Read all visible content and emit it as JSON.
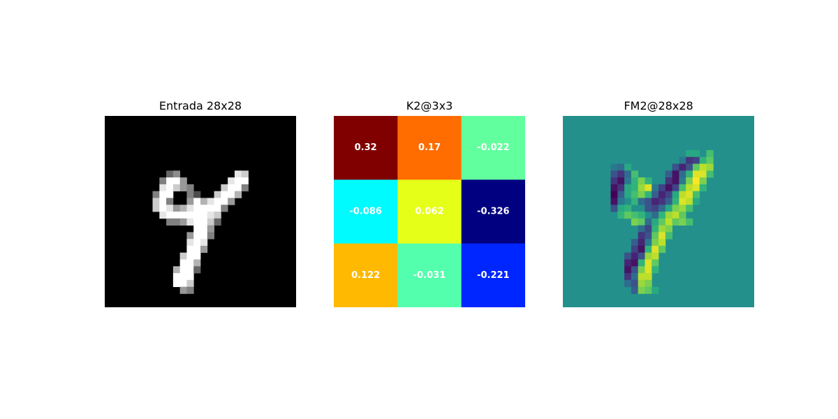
{
  "chart_data": [
    {
      "type": "heatmap",
      "title": "Entrada 28x28",
      "colormap": "gray",
      "value_range": [
        0,
        1
      ],
      "rows": 28,
      "cols": 28,
      "sparse_cells": [
        [
          8,
          9,
          0.4
        ],
        [
          8,
          10,
          0.55
        ],
        [
          8,
          19,
          0.9
        ],
        [
          8,
          20,
          0.8
        ],
        [
          9,
          8,
          0.5
        ],
        [
          9,
          9,
          1
        ],
        [
          9,
          10,
          1
        ],
        [
          9,
          11,
          0.6
        ],
        [
          9,
          18,
          0.9
        ],
        [
          9,
          19,
          1
        ],
        [
          9,
          20,
          1
        ],
        [
          10,
          8,
          0.9
        ],
        [
          10,
          9,
          1
        ],
        [
          10,
          10,
          0.8
        ],
        [
          10,
          11,
          0.6
        ],
        [
          10,
          12,
          0.5
        ],
        [
          10,
          17,
          0.8
        ],
        [
          10,
          18,
          1
        ],
        [
          10,
          19,
          1
        ],
        [
          10,
          20,
          0.5
        ],
        [
          11,
          7,
          0.5
        ],
        [
          11,
          8,
          1
        ],
        [
          11,
          9,
          1
        ],
        [
          11,
          12,
          0.5
        ],
        [
          11,
          13,
          0.3
        ],
        [
          11,
          16,
          0.8
        ],
        [
          11,
          17,
          1
        ],
        [
          11,
          18,
          1
        ],
        [
          11,
          19,
          0.7
        ],
        [
          12,
          7,
          0.8
        ],
        [
          12,
          8,
          1
        ],
        [
          12,
          9,
          0.5
        ],
        [
          12,
          12,
          0.6
        ],
        [
          12,
          13,
          1
        ],
        [
          12,
          14,
          0.7
        ],
        [
          12,
          15,
          0.9
        ],
        [
          12,
          16,
          1
        ],
        [
          12,
          17,
          1
        ],
        [
          12,
          18,
          0.6
        ],
        [
          13,
          7,
          0.8
        ],
        [
          13,
          8,
          1
        ],
        [
          13,
          9,
          0.9
        ],
        [
          13,
          10,
          0.6
        ],
        [
          13,
          11,
          0.7
        ],
        [
          13,
          12,
          0.9
        ],
        [
          13,
          13,
          1
        ],
        [
          13,
          14,
          1
        ],
        [
          13,
          15,
          1
        ],
        [
          13,
          16,
          1
        ],
        [
          13,
          17,
          0.5
        ],
        [
          14,
          8,
          0.9
        ],
        [
          14,
          9,
          1
        ],
        [
          14,
          10,
          1
        ],
        [
          14,
          11,
          1
        ],
        [
          14,
          12,
          1
        ],
        [
          14,
          13,
          1
        ],
        [
          14,
          14,
          1
        ],
        [
          14,
          15,
          0.9
        ],
        [
          14,
          16,
          0.8
        ],
        [
          15,
          9,
          0.5
        ],
        [
          15,
          10,
          0.5
        ],
        [
          15,
          11,
          0.6
        ],
        [
          15,
          12,
          0.9
        ],
        [
          15,
          13,
          1
        ],
        [
          15,
          14,
          1
        ],
        [
          15,
          15,
          0.8
        ],
        [
          15,
          16,
          0.4
        ],
        [
          16,
          13,
          1
        ],
        [
          16,
          14,
          1
        ],
        [
          16,
          15,
          0.6
        ],
        [
          17,
          12,
          0.6
        ],
        [
          17,
          13,
          1
        ],
        [
          17,
          14,
          1
        ],
        [
          17,
          15,
          0.5
        ],
        [
          18,
          12,
          0.9
        ],
        [
          18,
          13,
          1
        ],
        [
          18,
          14,
          0.9
        ],
        [
          19,
          12,
          1
        ],
        [
          19,
          13,
          1
        ],
        [
          19,
          14,
          0.6
        ],
        [
          20,
          11,
          0.8
        ],
        [
          20,
          12,
          1
        ],
        [
          20,
          13,
          1
        ],
        [
          21,
          11,
          1
        ],
        [
          21,
          12,
          1
        ],
        [
          21,
          13,
          0.7
        ],
        [
          22,
          10,
          0.7
        ],
        [
          22,
          11,
          1
        ],
        [
          22,
          12,
          1
        ],
        [
          22,
          13,
          0.4
        ],
        [
          23,
          10,
          1
        ],
        [
          23,
          11,
          1
        ],
        [
          23,
          12,
          1
        ],
        [
          24,
          10,
          1
        ],
        [
          24,
          11,
          1
        ],
        [
          24,
          12,
          0.8
        ],
        [
          25,
          11,
          0.6
        ],
        [
          25,
          12,
          0.5
        ]
      ]
    },
    {
      "type": "heatmap",
      "title": "K2@3x3",
      "colormap": "jet",
      "rows": 3,
      "cols": 3,
      "value_range": [
        -0.326,
        0.32
      ],
      "values": [
        [
          0.32,
          0.17,
          -0.022
        ],
        [
          -0.086,
          0.062,
          -0.326
        ],
        [
          0.122,
          -0.031,
          -0.221
        ]
      ],
      "labels": [
        [
          "0.32",
          "0.17",
          "-0.022"
        ],
        [
          "-0.086",
          "0.062",
          "-0.326"
        ],
        [
          "0.122",
          "-0.031",
          "-0.221"
        ]
      ]
    },
    {
      "type": "heatmap",
      "title": "FM2@28x28",
      "colormap": "viridis",
      "value_range": [
        -1,
        1
      ],
      "background_value": 0,
      "rows": 28,
      "cols": 28,
      "sparse_cells": [
        [
          5,
          18,
          0.2
        ],
        [
          5,
          19,
          0.2
        ],
        [
          5,
          21,
          0.4
        ],
        [
          6,
          17,
          -0.2
        ],
        [
          6,
          18,
          -0.7
        ],
        [
          6,
          19,
          -0.6
        ],
        [
          6,
          20,
          0.3
        ],
        [
          6,
          21,
          0.5
        ],
        [
          7,
          7,
          -0.2
        ],
        [
          7,
          8,
          -0.3
        ],
        [
          7,
          9,
          0.2
        ],
        [
          7,
          16,
          -0.5
        ],
        [
          7,
          17,
          -0.8
        ],
        [
          7,
          18,
          -0.5
        ],
        [
          7,
          19,
          0.5
        ],
        [
          7,
          20,
          0.8
        ],
        [
          7,
          21,
          0.7
        ],
        [
          8,
          7,
          -0.5
        ],
        [
          8,
          8,
          -0.7
        ],
        [
          8,
          9,
          -0.3
        ],
        [
          8,
          10,
          0.4
        ],
        [
          8,
          15,
          -0.4
        ],
        [
          8,
          16,
          -0.9
        ],
        [
          8,
          17,
          -0.3
        ],
        [
          8,
          18,
          0.3
        ],
        [
          8,
          19,
          0.9
        ],
        [
          8,
          20,
          0.9
        ],
        [
          8,
          21,
          0.4
        ],
        [
          9,
          7,
          -0.7
        ],
        [
          9,
          8,
          -0.9
        ],
        [
          9,
          9,
          -0.2
        ],
        [
          9,
          10,
          0.3
        ],
        [
          9,
          11,
          0.6
        ],
        [
          9,
          12,
          0.3
        ],
        [
          9,
          15,
          -0.7
        ],
        [
          9,
          16,
          -0.9
        ],
        [
          9,
          17,
          -0.2
        ],
        [
          9,
          18,
          0.6
        ],
        [
          9,
          19,
          1
        ],
        [
          9,
          20,
          0.6
        ],
        [
          10,
          7,
          -0.9
        ],
        [
          10,
          8,
          -0.7
        ],
        [
          10,
          9,
          0.2
        ],
        [
          10,
          10,
          0.3
        ],
        [
          10,
          11,
          0.7
        ],
        [
          10,
          12,
          0.9
        ],
        [
          10,
          13,
          -0.2
        ],
        [
          10,
          14,
          -0.6
        ],
        [
          10,
          15,
          -0.9
        ],
        [
          10,
          16,
          -0.6
        ],
        [
          10,
          17,
          0.4
        ],
        [
          10,
          18,
          0.8
        ],
        [
          10,
          19,
          0.9
        ],
        [
          10,
          20,
          0.3
        ],
        [
          11,
          7,
          -1
        ],
        [
          11,
          8,
          -0.4
        ],
        [
          11,
          9,
          0.2
        ],
        [
          11,
          10,
          0.4
        ],
        [
          11,
          11,
          0.6
        ],
        [
          11,
          12,
          0.3
        ],
        [
          11,
          13,
          -0.4
        ],
        [
          11,
          14,
          -0.8
        ],
        [
          11,
          15,
          -0.6
        ],
        [
          11,
          16,
          0.2
        ],
        [
          11,
          17,
          0.8
        ],
        [
          11,
          18,
          0.9
        ],
        [
          11,
          19,
          0.4
        ],
        [
          12,
          7,
          -0.9
        ],
        [
          12,
          8,
          -0.2
        ],
        [
          12,
          10,
          0.3
        ],
        [
          12,
          11,
          -0.3
        ],
        [
          12,
          12,
          -0.5
        ],
        [
          12,
          13,
          -0.8
        ],
        [
          12,
          14,
          -0.7
        ],
        [
          12,
          15,
          -0.4
        ],
        [
          12,
          16,
          0.3
        ],
        [
          12,
          17,
          0.9
        ],
        [
          12,
          18,
          0.8
        ],
        [
          12,
          19,
          0.2
        ],
        [
          13,
          7,
          -0.5
        ],
        [
          13,
          8,
          0.2
        ],
        [
          13,
          9,
          0.3
        ],
        [
          13,
          12,
          -0.5
        ],
        [
          13,
          13,
          -0.6
        ],
        [
          13,
          14,
          -0.3
        ],
        [
          13,
          15,
          0.2
        ],
        [
          13,
          16,
          0.6
        ],
        [
          13,
          17,
          0.7
        ],
        [
          13,
          18,
          0.4
        ],
        [
          14,
          8,
          0.3
        ],
        [
          14,
          9,
          0.5
        ],
        [
          14,
          10,
          0.4
        ],
        [
          14,
          11,
          0.3
        ],
        [
          14,
          13,
          -0.3
        ],
        [
          14,
          14,
          0.3
        ],
        [
          14,
          15,
          0.7
        ],
        [
          14,
          16,
          0.8
        ],
        [
          14,
          17,
          0.5
        ],
        [
          15,
          10,
          0.6
        ],
        [
          15,
          11,
          0.5
        ],
        [
          15,
          12,
          -0.3
        ],
        [
          15,
          13,
          0.2
        ],
        [
          15,
          14,
          0.5
        ],
        [
          15,
          15,
          0.8
        ],
        [
          15,
          16,
          0.5
        ],
        [
          15,
          17,
          0.6
        ],
        [
          15,
          18,
          0.4
        ],
        [
          16,
          11,
          -0.3
        ],
        [
          16,
          12,
          -0.6
        ],
        [
          16,
          13,
          0.3
        ],
        [
          16,
          14,
          0.7
        ],
        [
          16,
          15,
          0.6
        ],
        [
          17,
          11,
          -0.7
        ],
        [
          17,
          12,
          -0.5
        ],
        [
          17,
          13,
          0.5
        ],
        [
          17,
          14,
          0.9
        ],
        [
          17,
          15,
          0.4
        ],
        [
          18,
          10,
          -0.4
        ],
        [
          18,
          11,
          -0.8
        ],
        [
          18,
          12,
          -0.2
        ],
        [
          18,
          13,
          0.6
        ],
        [
          18,
          14,
          0.8
        ],
        [
          19,
          10,
          -0.6
        ],
        [
          19,
          11,
          -0.9
        ],
        [
          19,
          12,
          0.3
        ],
        [
          19,
          13,
          0.9
        ],
        [
          19,
          14,
          0.5
        ],
        [
          20,
          9,
          -0.5
        ],
        [
          20,
          10,
          -0.8
        ],
        [
          20,
          11,
          -0.5
        ],
        [
          20,
          12,
          0.7
        ],
        [
          20,
          13,
          0.8
        ],
        [
          21,
          9,
          -0.8
        ],
        [
          21,
          10,
          -0.9
        ],
        [
          21,
          11,
          0.3
        ],
        [
          21,
          12,
          0.9
        ],
        [
          21,
          13,
          0.5
        ],
        [
          22,
          9,
          -0.9
        ],
        [
          22,
          10,
          -0.5
        ],
        [
          22,
          11,
          0.6
        ],
        [
          22,
          12,
          0.9
        ],
        [
          22,
          13,
          0.3
        ],
        [
          23,
          9,
          -0.7
        ],
        [
          23,
          10,
          -0.3
        ],
        [
          23,
          11,
          0.8
        ],
        [
          23,
          12,
          0.8
        ],
        [
          24,
          9,
          -0.3
        ],
        [
          24,
          10,
          -0.5
        ],
        [
          24,
          11,
          0.7
        ],
        [
          24,
          12,
          0.6
        ],
        [
          25,
          10,
          -0.4
        ],
        [
          25,
          11,
          0.6
        ],
        [
          25,
          12,
          0.5
        ],
        [
          25,
          13,
          0.2
        ]
      ]
    }
  ]
}
